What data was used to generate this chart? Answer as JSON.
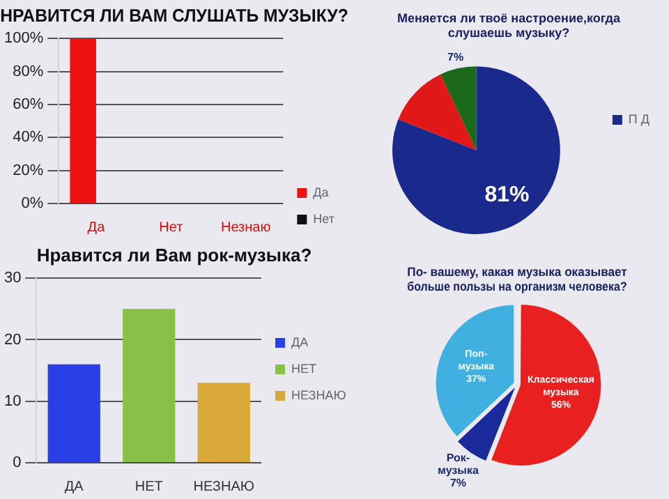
{
  "chart_data": [
    {
      "type": "bar",
      "title": "НРАВИТСЯ ЛИ ВАМ СЛУШАТЬ МУЗЫКУ?",
      "categories": [
        "Да",
        "Нет",
        "Незнаю"
      ],
      "series": [
        {
          "name": "Да",
          "color": "#ee1111",
          "values": [
            100,
            0,
            0
          ]
        },
        {
          "name": "Нет",
          "color": "#111111",
          "values": [
            0,
            0,
            0
          ]
        }
      ],
      "ylim": [
        0,
        100
      ],
      "yticks": [
        {
          "value": 0,
          "label": "0%"
        },
        {
          "value": 20,
          "label": "20%"
        },
        {
          "value": 40,
          "label": "40%"
        },
        {
          "value": 60,
          "label": "60%"
        },
        {
          "value": 80,
          "label": "80%"
        },
        {
          "value": 100,
          "label": "100%"
        }
      ],
      "grid": "y",
      "legend": "bottom right"
    },
    {
      "type": "pie",
      "title": "Меняется ли твоё настроение,когда слушаешь музыку?",
      "categories": [
        "П Д",
        null,
        null
      ],
      "values": [
        81,
        12,
        7
      ],
      "colors": [
        "#1a2a8c",
        "#e01818",
        "#1a6a1a"
      ],
      "value_labels": [
        "81%",
        null,
        "7%"
      ],
      "legend": "right"
    },
    {
      "type": "bar",
      "title": "Нравится ли Вам рок-музыка?",
      "categories": [
        "ДА",
        "НЕТ",
        "НЕЗНАЮ"
      ],
      "series": [
        {
          "name": "ДА",
          "color": "#2a3fe6",
          "values": [
            16,
            null,
            null
          ]
        },
        {
          "name": "НЕТ",
          "color": "#88c048",
          "values": [
            null,
            25,
            null
          ]
        },
        {
          "name": "НЕЗНАЮ",
          "color": "#d8a838",
          "values": [
            null,
            null,
            13
          ]
        }
      ],
      "ylim": [
        0,
        30
      ],
      "yticks": [
        0,
        10,
        20,
        30
      ],
      "grid": "y",
      "legend": "right"
    },
    {
      "type": "pie",
      "title": "По- вашему, какая музыка оказывает больше пользы на организм человека?",
      "categories": [
        "Классическая музыка",
        "Рок-музыка",
        "Поп-музыка"
      ],
      "values": [
        56,
        7,
        37
      ],
      "colors": [
        "#e82020",
        "#1a2a9a",
        "#40b0e0"
      ],
      "value_labels": [
        "56%",
        "7%",
        "37%"
      ],
      "legend": false
    }
  ]
}
